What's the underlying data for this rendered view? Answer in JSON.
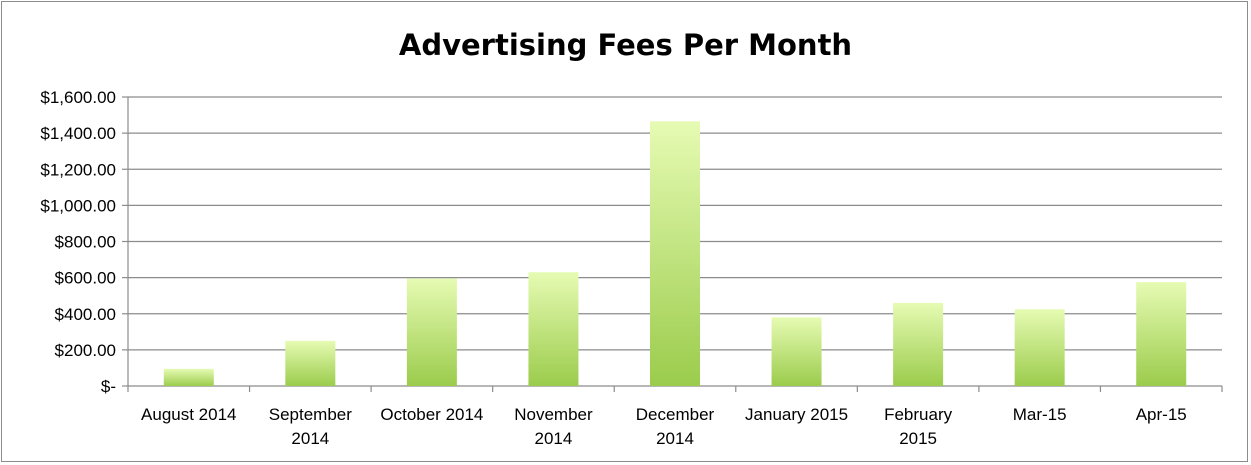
{
  "chart_data": {
    "type": "bar",
    "title": "Advertising Fees Per Month",
    "categories": [
      [
        "August 2014"
      ],
      [
        "September",
        "2014"
      ],
      [
        "October 2014"
      ],
      [
        "November",
        "2014"
      ],
      [
        "December",
        "2014"
      ],
      [
        "January 2015"
      ],
      [
        "February",
        "2015"
      ],
      [
        "Mar-15"
      ],
      [
        "Apr-15"
      ]
    ],
    "values": [
      95,
      250,
      595,
      630,
      1465,
      380,
      460,
      425,
      575
    ],
    "ylim": [
      0,
      1600
    ],
    "yticks": [
      0,
      200,
      400,
      600,
      800,
      1000,
      1200,
      1400,
      1600
    ],
    "ytick_labels": [
      "$-",
      "$200.00",
      "$400.00",
      "$600.00",
      "$800.00",
      "$1,000.00",
      "$1,200.00",
      "$1,400.00",
      "$1,600.00"
    ],
    "grid": true,
    "legend": "none",
    "colors": {
      "bar_top": "#e6fbb3",
      "bar_bottom": "#9bcc4c",
      "grid": "#8c8c8c"
    }
  }
}
